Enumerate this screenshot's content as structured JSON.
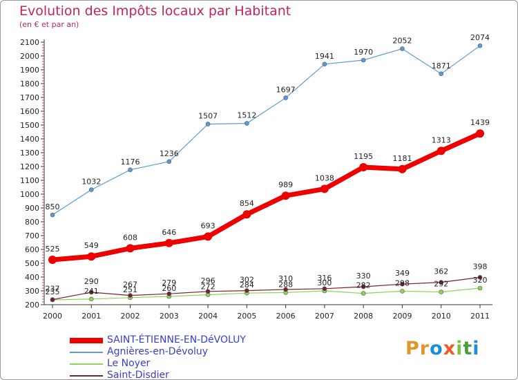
{
  "header": {
    "title": "Evolution des Impôts locaux par Habitant",
    "subtitle": "(en € et par an)"
  },
  "brand": {
    "letters": [
      "P",
      "r",
      "o",
      "x",
      "i",
      "t",
      "i"
    ],
    "colors": [
      "#e0962a",
      "#e0962a",
      "#1d8fd1",
      "#f05a2a",
      "#7cc243",
      "#4a9e3c",
      "#1d8fd1"
    ]
  },
  "chart_data": {
    "type": "line",
    "x": [
      2000,
      2001,
      2002,
      2003,
      2004,
      2005,
      2006,
      2007,
      2008,
      2009,
      2010,
      2011
    ],
    "ylim": [
      200,
      2100
    ],
    "y_ticks": [
      200,
      300,
      400,
      500,
      600,
      700,
      800,
      900,
      1000,
      1100,
      1200,
      1300,
      1400,
      1500,
      1600,
      1700,
      1800,
      1900,
      2000,
      2100
    ],
    "grid": false,
    "legend_position": "bottom-left",
    "series": [
      {
        "name": "SAINT-ÉTIENNE-EN-DéVOLUY",
        "color": "#ee0000",
        "emphasis": "thick",
        "values": [
          525,
          549,
          608,
          646,
          693,
          854,
          989,
          1038,
          1195,
          1181,
          1313,
          1439
        ],
        "labels": [
          "525",
          "549",
          "608",
          "646",
          "693",
          "854",
          "989",
          "1038",
          "1195",
          "1181",
          "1313",
          "1439"
        ]
      },
      {
        "name": "Agnières-en-Dévoluy",
        "color": "#5b9bd5",
        "values": [
          850,
          1032,
          1176,
          1236,
          1507,
          1512,
          1697,
          1941,
          1970,
          2052,
          1871,
          2074
        ],
        "labels": [
          "850",
          "1032",
          "1176",
          "1236",
          "1507",
          "1512",
          "1697",
          "1941",
          "1970",
          "2052",
          "1871",
          "2074"
        ]
      },
      {
        "name": "Le Noyer",
        "color": "#8fd45a",
        "values": [
          235,
          241,
          251,
          260,
          272,
          284,
          288,
          300,
          282,
          298,
          292,
          320
        ],
        "labels": [
          "235",
          "241",
          "251",
          "260",
          "272",
          "284",
          "288",
          "300",
          "282",
          "298",
          "292",
          "320"
        ]
      },
      {
        "name": "Saint-Disdier",
        "color": "#7a2030",
        "values": [
          237,
          290,
          267,
          279,
          296,
          302,
          310,
          316,
          330,
          349,
          362,
          398
        ],
        "labels": [
          "237",
          "290",
          "267",
          "279",
          "296",
          "302",
          "310",
          "316",
          "330",
          "349",
          "362",
          "398"
        ]
      }
    ]
  }
}
